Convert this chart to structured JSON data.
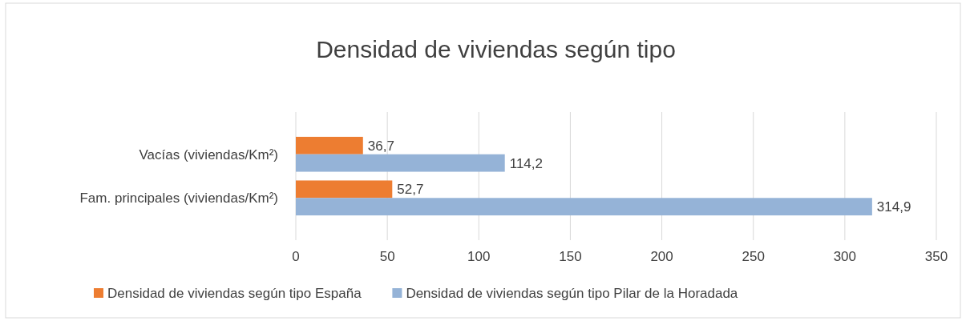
{
  "chart_data": {
    "type": "bar",
    "orientation": "horizontal",
    "title": "Densidad de viviendas según tipo",
    "categories": [
      "Vacías (viviendas/Km²)",
      "Fam. principales (viviendas/Km²)"
    ],
    "series": [
      {
        "name": "Densidad de viviendas según tipo España",
        "color": "#ed7d31",
        "values": [
          36.7,
          52.7
        ],
        "value_labels": [
          "36,7",
          "52,7"
        ]
      },
      {
        "name": "Densidad de viviendas según tipo Pilar de la Horadada",
        "color": "#95b3d7",
        "values": [
          114.2,
          314.9
        ],
        "value_labels": [
          "114,2",
          "314,9"
        ]
      }
    ],
    "xlim": [
      0,
      350
    ],
    "xticks": [
      0,
      50,
      100,
      150,
      200,
      250,
      300,
      350
    ],
    "grid": "x",
    "legend": "bottom"
  }
}
